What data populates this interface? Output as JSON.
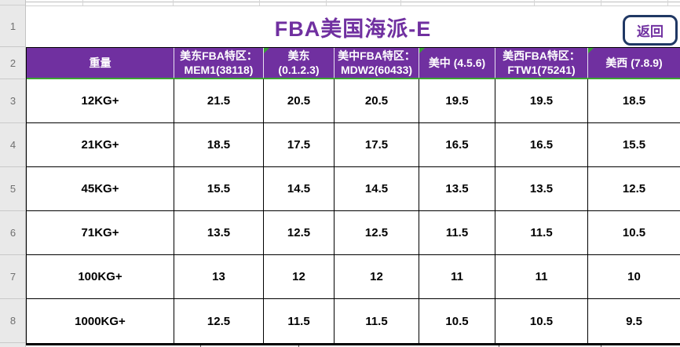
{
  "sheet": {
    "title": "FBA美国海派-E",
    "back_button_label": "返回",
    "row_numbers": [
      "1",
      "2",
      "3",
      "4",
      "5",
      "6",
      "7",
      "8"
    ],
    "colors": {
      "header_purple": "#7030A0",
      "title_purple": "#7030A0",
      "grid_green_line": "#3EA434",
      "corner_flag_green": "#36A034",
      "button_border_navy": "#203864",
      "cell_border": "#000000",
      "gutter_gray": "#e9e9e9"
    }
  },
  "table": {
    "columns": [
      {
        "id": "weight",
        "label_lines": [
          "重量"
        ],
        "flag": false
      },
      {
        "id": "east-fba",
        "label_lines": [
          "美东FBA特区：",
          "MEM1(38118)"
        ],
        "flag": false
      },
      {
        "id": "east",
        "label_lines": [
          "美东",
          "(0.1.2.3)"
        ],
        "flag": true
      },
      {
        "id": "central-fba",
        "label_lines": [
          "美中FBA特区：",
          "MDW2(60433)"
        ],
        "flag": false
      },
      {
        "id": "central",
        "label_lines": [
          "美中 (4.5.6)"
        ],
        "flag": true
      },
      {
        "id": "west-fba",
        "label_lines": [
          "美西FBA特区：",
          "FTW1(75241)"
        ],
        "flag": false
      },
      {
        "id": "west",
        "label_lines": [
          "美西 (7.8.9)"
        ],
        "flag": true
      }
    ],
    "rows": [
      {
        "weight": "12KG+",
        "values": [
          "21.5",
          "20.5",
          "20.5",
          "19.5",
          "19.5",
          "18.5"
        ]
      },
      {
        "weight": "21KG+",
        "values": [
          "18.5",
          "17.5",
          "17.5",
          "16.5",
          "16.5",
          "15.5"
        ]
      },
      {
        "weight": "45KG+",
        "values": [
          "15.5",
          "14.5",
          "14.5",
          "13.5",
          "13.5",
          "12.5"
        ]
      },
      {
        "weight": "71KG+",
        "values": [
          "13.5",
          "12.5",
          "12.5",
          "11.5",
          "11.5",
          "10.5"
        ]
      },
      {
        "weight": "100KG+",
        "values": [
          "13",
          "12",
          "12",
          "11",
          "11",
          "10"
        ]
      },
      {
        "weight": "1000KG+",
        "values": [
          "12.5",
          "11.5",
          "11.5",
          "10.5",
          "10.5",
          "9.5"
        ]
      }
    ]
  }
}
